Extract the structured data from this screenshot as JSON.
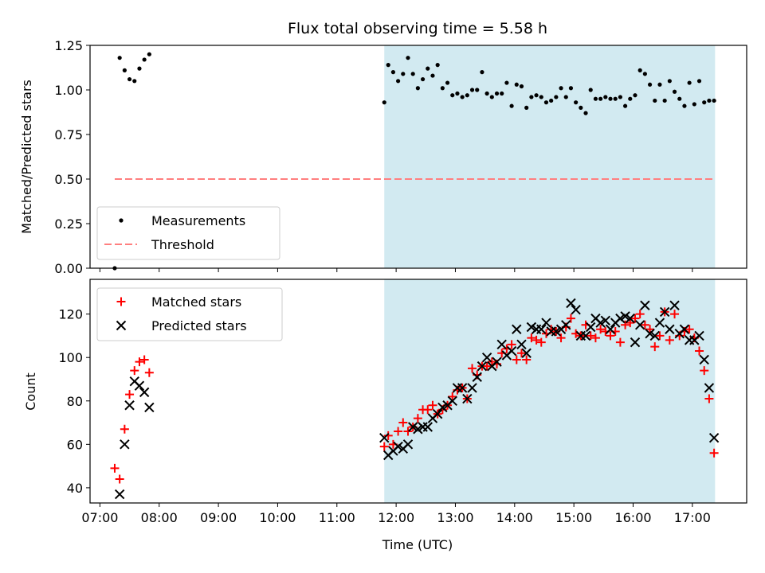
{
  "figure_title": "Flux total observing time = 5.58 h",
  "colors": {
    "measurements": "#000000",
    "threshold": "#ff7f7f",
    "matched": "#ff0000",
    "predicted": "#000000",
    "shade": "#add8e6"
  },
  "chart_data": [
    {
      "type": "scatter",
      "ylabel": "Matched/Predicted stars",
      "xlim": [
        "06:50",
        "17:55"
      ],
      "ylim": [
        0,
        1.25
      ],
      "yticks": [
        "0.00",
        "0.25",
        "0.50",
        "0.75",
        "1.00",
        "1.25"
      ],
      "yticks_values": [
        0,
        0.25,
        0.5,
        0.75,
        1.0,
        1.25
      ],
      "shaded_span": [
        "11:48",
        "17:23"
      ],
      "threshold": {
        "name": "Threshold",
        "y": 0.5,
        "x_range": [
          "07:15",
          "17:23"
        ]
      },
      "legend_position": "lower-left",
      "series": [
        {
          "name": "Measurements",
          "x": [
            "07:15",
            "07:20",
            "07:25",
            "07:30",
            "07:35",
            "07:40",
            "07:45",
            "07:50",
            "11:48",
            "11:52",
            "11:57",
            "12:02",
            "12:07",
            "12:12",
            "12:17",
            "12:22",
            "12:27",
            "12:32",
            "12:37",
            "12:42",
            "12:47",
            "12:52",
            "12:57",
            "13:02",
            "13:07",
            "13:12",
            "13:17",
            "13:22",
            "13:27",
            "13:32",
            "13:37",
            "13:42",
            "13:47",
            "13:52",
            "13:57",
            "14:02",
            "14:07",
            "14:12",
            "14:17",
            "14:22",
            "14:27",
            "14:32",
            "14:37",
            "14:42",
            "14:47",
            "14:52",
            "14:57",
            "15:02",
            "15:07",
            "15:12",
            "15:17",
            "15:22",
            "15:27",
            "15:32",
            "15:37",
            "15:42",
            "15:47",
            "15:52",
            "15:57",
            "16:02",
            "16:07",
            "16:12",
            "16:17",
            "16:22",
            "16:27",
            "16:32",
            "16:37",
            "16:42",
            "16:47",
            "16:52",
            "16:57",
            "17:02",
            "17:07",
            "17:12",
            "17:17",
            "17:22"
          ],
          "y": [
            0.0,
            1.18,
            1.11,
            1.06,
            1.05,
            1.12,
            1.17,
            1.2,
            0.93,
            1.14,
            1.1,
            1.05,
            1.09,
            1.18,
            1.09,
            1.01,
            1.06,
            1.12,
            1.08,
            1.14,
            1.01,
            1.04,
            0.97,
            0.98,
            0.96,
            0.97,
            1.0,
            1.0,
            1.1,
            0.98,
            0.96,
            0.98,
            0.98,
            1.04,
            0.91,
            1.03,
            1.02,
            0.9,
            0.96,
            0.97,
            0.96,
            0.93,
            0.94,
            0.96,
            1.01,
            0.96,
            1.01,
            0.93,
            0.9,
            0.87,
            1.0,
            0.95,
            0.95,
            0.96,
            0.95,
            0.95,
            0.96,
            0.91,
            0.95,
            0.97,
            1.11,
            1.09,
            1.03,
            0.94,
            1.03,
            0.94,
            1.05,
            0.99,
            0.95,
            0.91,
            1.04,
            0.92,
            1.05,
            0.93,
            0.94,
            0.94
          ]
        }
      ]
    },
    {
      "type": "scatter",
      "xlabel": "Time (UTC)",
      "ylabel": "Count",
      "xlim": [
        "06:50",
        "17:55"
      ],
      "ylim": [
        33,
        136
      ],
      "yticks": [
        "40",
        "60",
        "80",
        "100",
        "120"
      ],
      "yticks_values": [
        40,
        60,
        80,
        100,
        120
      ],
      "xticks": [
        "07:00",
        "08:00",
        "09:00",
        "10:00",
        "11:00",
        "12:00",
        "13:00",
        "14:00",
        "15:00",
        "16:00",
        "17:00"
      ],
      "shaded_span": [
        "11:48",
        "17:23"
      ],
      "legend_position": "upper-left",
      "series": [
        {
          "name": "Matched stars",
          "marker": "+",
          "x": [
            "07:15",
            "07:20",
            "07:25",
            "07:30",
            "07:35",
            "07:40",
            "07:45",
            "07:50",
            "11:48",
            "11:52",
            "11:57",
            "12:02",
            "12:07",
            "12:12",
            "12:17",
            "12:22",
            "12:27",
            "12:32",
            "12:37",
            "12:42",
            "12:47",
            "12:52",
            "12:57",
            "13:02",
            "13:07",
            "13:12",
            "13:17",
            "13:22",
            "13:27",
            "13:32",
            "13:37",
            "13:42",
            "13:47",
            "13:52",
            "13:57",
            "14:02",
            "14:07",
            "14:12",
            "14:17",
            "14:22",
            "14:27",
            "14:32",
            "14:37",
            "14:42",
            "14:47",
            "14:52",
            "14:57",
            "15:02",
            "15:07",
            "15:12",
            "15:17",
            "15:22",
            "15:27",
            "15:32",
            "15:37",
            "15:42",
            "15:47",
            "15:52",
            "15:57",
            "16:02",
            "16:07",
            "16:12",
            "16:17",
            "16:22",
            "16:27",
            "16:32",
            "16:37",
            "16:42",
            "16:47",
            "16:52",
            "16:57",
            "17:02",
            "17:07",
            "17:12",
            "17:17",
            "17:22"
          ],
          "y": [
            49,
            44,
            67,
            83,
            94,
            98,
            99,
            93,
            59,
            64,
            60,
            66,
            70,
            66,
            68,
            72,
            76,
            76,
            78,
            74,
            76,
            78,
            82,
            85,
            86,
            81,
            95,
            92,
            96,
            96,
            98,
            97,
            102,
            104,
            106,
            99,
            102,
            99,
            109,
            108,
            107,
            111,
            113,
            112,
            109,
            114,
            118,
            111,
            110,
            115,
            110,
            109,
            113,
            112,
            110,
            112,
            107,
            115,
            116,
            118,
            120,
            115,
            113,
            105,
            110,
            121,
            108,
            120,
            110,
            112,
            113,
            109,
            103,
            94,
            81,
            56
          ]
        },
        {
          "name": "Predicted stars",
          "marker": "x",
          "x": [
            "07:20",
            "07:25",
            "07:30",
            "07:35",
            "07:40",
            "07:45",
            "07:50",
            "11:48",
            "11:52",
            "11:57",
            "12:02",
            "12:07",
            "12:12",
            "12:17",
            "12:22",
            "12:27",
            "12:32",
            "12:37",
            "12:42",
            "12:47",
            "12:52",
            "12:57",
            "13:02",
            "13:07",
            "13:12",
            "13:17",
            "13:22",
            "13:27",
            "13:32",
            "13:37",
            "13:42",
            "13:47",
            "13:52",
            "13:57",
            "14:02",
            "14:07",
            "14:12",
            "14:17",
            "14:22",
            "14:27",
            "14:32",
            "14:37",
            "14:42",
            "14:47",
            "14:52",
            "14:57",
            "15:02",
            "15:07",
            "15:12",
            "15:17",
            "15:22",
            "15:27",
            "15:32",
            "15:37",
            "15:42",
            "15:47",
            "15:52",
            "15:57",
            "16:02",
            "16:07",
            "16:12",
            "16:17",
            "16:22",
            "16:27",
            "16:32",
            "16:37",
            "16:42",
            "16:47",
            "16:52",
            "16:57",
            "17:02",
            "17:07",
            "17:12",
            "17:17",
            "17:22"
          ],
          "y": [
            37,
            60,
            78,
            89,
            87,
            84,
            77,
            63,
            55,
            57,
            59,
            58,
            60,
            68,
            67,
            68,
            68,
            72,
            74,
            77,
            78,
            80,
            86,
            86,
            81,
            86,
            91,
            96,
            100,
            96,
            98,
            106,
            101,
            103,
            113,
            106,
            102,
            114,
            113,
            113,
            116,
            112,
            112,
            113,
            115,
            125,
            122,
            110,
            110,
            114,
            118,
            116,
            117,
            113,
            116,
            118,
            119,
            118,
            107,
            115,
            124,
            111,
            110,
            116,
            121,
            113,
            124,
            111,
            113,
            108,
            108,
            110,
            99,
            86,
            63
          ]
        }
      ]
    }
  ]
}
